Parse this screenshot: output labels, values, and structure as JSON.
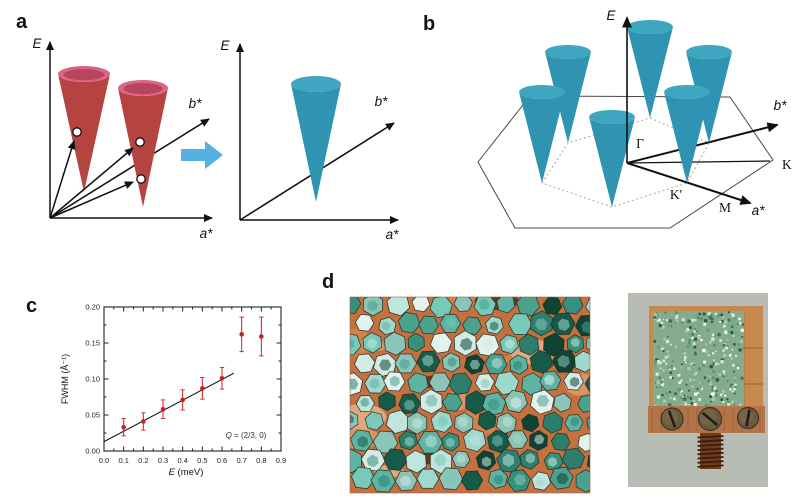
{
  "panel_a": {
    "label": "a",
    "left": {
      "e": "E",
      "b": "b*",
      "a": "a*"
    },
    "right": {
      "e": "E",
      "b": "b*",
      "a": "a*"
    }
  },
  "panel_b": {
    "label": "b",
    "e": "E",
    "b": "b*",
    "a": "a*",
    "gamma": "Γ",
    "k": "K",
    "k_prime": "K'",
    "m": "M"
  },
  "panel_c": {
    "label": "c"
  },
  "panel_d": {
    "label": "d",
    "left_photo": {
      "name": "co-aligned hexagonal crystal platelets on copper plate",
      "background_copper": "#c4713f",
      "copper_blobs": [
        "#e09a68",
        "#d8834b",
        "#5a2d16",
        "#e8b088"
      ],
      "crystal_palette": [
        "#bfe6dd",
        "#77c9b8",
        "#49a18e",
        "#2d7f6c",
        "#175a47",
        "#9fd8cc",
        "#e4f2ee",
        "#5eb4a4",
        "#36907c",
        "#0f4434",
        "#8cc4b8",
        "#d2ebe5"
      ]
    },
    "right_photo": {
      "name": "crystal mosaic on copper sample holder with screws and bolt",
      "background": "#b7bdb5",
      "copper_plate": "#c8894f",
      "copper_bar": "#b4744a",
      "mosaic_base": "#84ab8d",
      "mosaic_palette": [
        "#d9ecd9",
        "#5d9673",
        "#3a7153",
        "#a8cbaa",
        "#ffffff",
        "#2c5940",
        "#6fae87"
      ],
      "screw_color": "#6b5a40",
      "bolt_color": "#6e3c1e"
    }
  },
  "colors": {
    "red_cone": "#b5433f",
    "red_cone_rim": "#dd6584",
    "red_cone_inner": "#b8455f",
    "teal_cone": "#2e94b1",
    "teal_cone_top": "#3fa6c0",
    "blue_arrow": "#57b0e3",
    "data_point_red": "#cb1f1e"
  },
  "chart_data": {
    "type": "scatter",
    "title": "",
    "xlabel": "E (meV)",
    "xlabel_italic": "E",
    "xlabel_rest": " (meV)",
    "ylabel": "FWHM (Å⁻¹)",
    "xlim": [
      0.0,
      0.9
    ],
    "ylim": [
      0.0,
      0.2
    ],
    "xticks": [
      "0.0",
      "0.1",
      "0.2",
      "0.3",
      "0.4",
      "0.5",
      "0.6",
      "0.7",
      "0.8",
      "0.9"
    ],
    "yticks": [
      "0.00",
      "0.05",
      "0.10",
      "0.15",
      "0.20"
    ],
    "grid": false,
    "legend": null,
    "annotation": "Q = (2/3, 0)",
    "annotation_italic": "Q",
    "annotation_rest": " = (2/3, 0)",
    "series": [
      {
        "name": "FWHM vs E",
        "color": "#cb1f1e",
        "x": [
          0.1,
          0.2,
          0.3,
          0.4,
          0.5,
          0.6,
          0.7,
          0.8
        ],
        "y": [
          0.033,
          0.041,
          0.058,
          0.071,
          0.087,
          0.101,
          0.162,
          0.159
        ],
        "yerr": [
          0.012,
          0.012,
          0.013,
          0.014,
          0.015,
          0.015,
          0.024,
          0.027
        ]
      }
    ],
    "fit_line": {
      "x": [
        0.0,
        0.66
      ],
      "y": [
        0.013,
        0.108
      ],
      "color": "#1a1a1a"
    }
  }
}
